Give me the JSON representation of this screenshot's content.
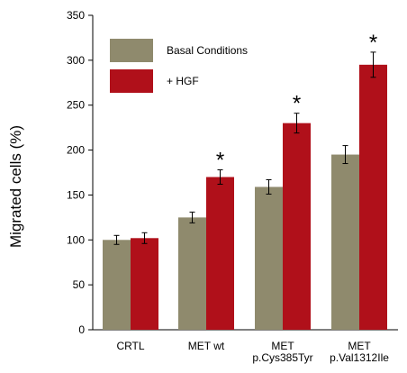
{
  "chart_data": {
    "type": "bar",
    "ylabel": "Migrated cells (%)",
    "ylim": [
      0,
      350
    ],
    "yticks": [
      0,
      50,
      100,
      150,
      200,
      250,
      300,
      350
    ],
    "categories": [
      [
        "CRTL"
      ],
      [
        "MET wt"
      ],
      [
        "MET",
        "p.Cys385Tyr"
      ],
      [
        "MET",
        "p.Val1312Ile"
      ]
    ],
    "series": [
      {
        "name": "Basal Conditions",
        "color": "#8f8a6d",
        "values": [
          100,
          125,
          159,
          195
        ],
        "errors": [
          5,
          6,
          8,
          10
        ]
      },
      {
        "name": "+ HGF",
        "color": "#b0101a",
        "values": [
          102,
          170,
          230,
          295
        ],
        "errors": [
          6,
          8,
          11,
          14
        ]
      }
    ],
    "significance": [
      {
        "category": 1,
        "series": 1,
        "label": "*"
      },
      {
        "category": 2,
        "series": 1,
        "label": "*"
      },
      {
        "category": 3,
        "series": 1,
        "label": "*"
      }
    ],
    "legend_position": "top-left",
    "grid": false
  }
}
